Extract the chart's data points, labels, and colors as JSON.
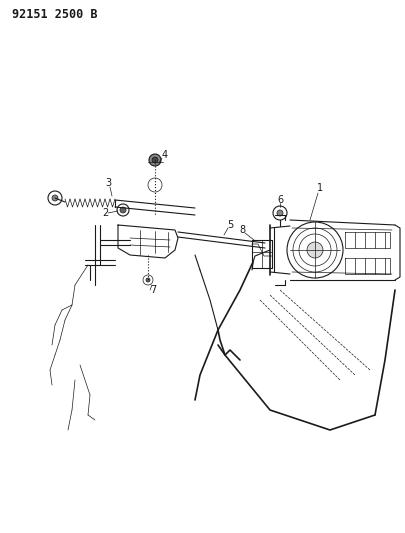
{
  "title_text": "92151 2500 B",
  "background_color": "#ffffff",
  "line_color": "#1a1a1a",
  "figsize": [
    4.06,
    5.33
  ],
  "dpi": 100
}
